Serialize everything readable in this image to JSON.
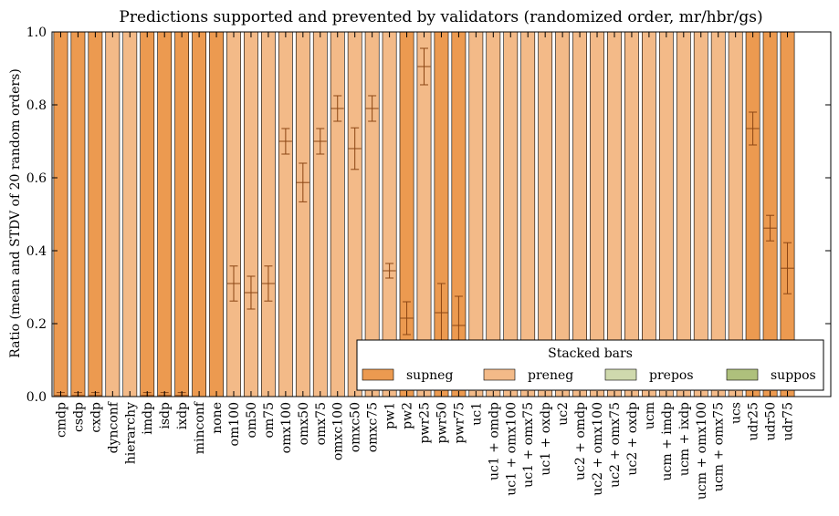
{
  "chart_data": {
    "type": "bar",
    "stacked": true,
    "title": "Predictions supported and prevented by validators (randomized order, mr/hbr/gs)",
    "ylabel": "Ratio (mean and STDV of 20 random orders)",
    "xlabel": "",
    "ylim": [
      0,
      1.0
    ],
    "yticks": [
      "0.0",
      "0.2",
      "0.4",
      "0.6",
      "0.8",
      "1.0"
    ],
    "categories": [
      "cmdp",
      "csdp",
      "cxdp",
      "dynconf",
      "hierarchy",
      "imdp",
      "isdp",
      "ixdp",
      "minconf",
      "none",
      "om100",
      "om50",
      "om75",
      "omx100",
      "omx50",
      "omx75",
      "omxc100",
      "omxc50",
      "omxc75",
      "pw1",
      "pw2",
      "pwr25",
      "pwr50",
      "pwr75",
      "uc1",
      "uc1 + omdp",
      "uc1 + omx100",
      "uc1 + omx75",
      "uc1 + oxdp",
      "uc2",
      "uc2 + omdp",
      "uc2 + omx100",
      "uc2 + omx75",
      "uc2 + oxdp",
      "ucm",
      "ucm + imdp",
      "ucm + ixdp",
      "ucm + omx100",
      "ucm + omx75",
      "ucs",
      "udr25",
      "udr50",
      "udr75"
    ],
    "series": [
      {
        "name": "supneg",
        "color": "#ec9a50",
        "values": [
          1,
          1,
          1,
          0,
          0,
          1,
          1,
          1,
          1,
          1,
          0,
          0,
          0,
          0,
          0,
          0,
          0,
          0,
          0,
          0,
          1,
          0,
          1,
          1,
          0,
          0,
          0,
          0,
          0,
          0,
          0,
          0,
          0,
          0,
          0,
          0,
          0,
          0,
          0,
          0,
          1,
          1,
          1
        ]
      },
      {
        "name": "preneg",
        "color": "#f3ba88",
        "values": [
          0,
          0,
          0,
          1,
          1,
          0,
          0,
          0,
          0,
          0,
          1,
          1,
          1,
          1,
          1,
          1,
          1,
          1,
          1,
          1,
          0,
          1,
          0,
          0,
          1,
          1,
          1,
          1,
          1,
          1,
          1,
          1,
          1,
          1,
          1,
          1,
          1,
          1,
          1,
          1,
          0,
          0,
          0
        ]
      },
      {
        "name": "prepos",
        "color": "#cfd9ad",
        "values": [
          0,
          0,
          0,
          0,
          0,
          0,
          0,
          0,
          0,
          0,
          0,
          0,
          0,
          0,
          0,
          0,
          0,
          0,
          0,
          0,
          0,
          0,
          0,
          0,
          0,
          0,
          0,
          0,
          0,
          0,
          0,
          0,
          0,
          0,
          0,
          0,
          0,
          0,
          0,
          0,
          0,
          0,
          0
        ]
      },
      {
        "name": "suppos",
        "color": "#aec07c",
        "values": [
          0,
          0,
          0,
          0,
          0,
          0,
          0,
          0,
          0,
          0,
          0,
          0,
          0,
          0,
          0,
          0,
          0,
          0,
          0,
          0,
          0,
          0,
          0,
          0,
          0,
          0,
          0,
          0,
          0,
          0,
          0,
          0,
          0,
          0,
          0,
          0,
          0,
          0,
          0,
          0,
          0,
          0,
          0
        ]
      }
    ],
    "error_bars": [
      {
        "mean": 0.003,
        "std": 0.008
      },
      {
        "mean": 0.003,
        "std": 0.008
      },
      {
        "mean": 0.003,
        "std": 0.008
      },
      null,
      null,
      {
        "mean": 0.003,
        "std": 0.008
      },
      {
        "mean": 0.003,
        "std": 0.008
      },
      {
        "mean": 0.003,
        "std": 0.008
      },
      null,
      null,
      {
        "mean": 0.31,
        "std": 0.048
      },
      {
        "mean": 0.285,
        "std": 0.045
      },
      {
        "mean": 0.31,
        "std": 0.048
      },
      {
        "mean": 0.7,
        "std": 0.035
      },
      {
        "mean": 0.587,
        "std": 0.053
      },
      {
        "mean": 0.7,
        "std": 0.035
      },
      {
        "mean": 0.79,
        "std": 0.035
      },
      {
        "mean": 0.68,
        "std": 0.057
      },
      {
        "mean": 0.79,
        "std": 0.035
      },
      {
        "mean": 0.345,
        "std": 0.02
      },
      {
        "mean": 0.215,
        "std": 0.045
      },
      {
        "mean": 0.905,
        "std": 0.05
      },
      {
        "mean": 0.23,
        "std": 0.08
      },
      {
        "mean": 0.195,
        "std": 0.08
      },
      null,
      null,
      null,
      null,
      null,
      null,
      null,
      null,
      null,
      null,
      null,
      null,
      null,
      null,
      null,
      null,
      {
        "mean": 0.735,
        "std": 0.045
      },
      {
        "mean": 0.462,
        "std": 0.035
      },
      {
        "mean": 0.352,
        "std": 0.07
      }
    ],
    "error_bar_color": "#8b4513",
    "legend": {
      "title": "Stacked bars",
      "placement": "lower-right",
      "entries": [
        "supneg",
        "preneg",
        "prepos",
        "suppos"
      ]
    },
    "grid": false
  }
}
